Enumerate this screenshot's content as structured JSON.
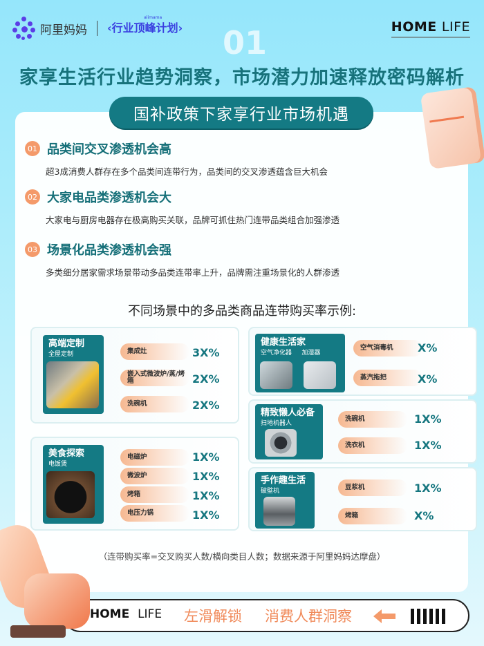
{
  "header": {
    "brand": "阿里妈妈",
    "plan": "‹行业顶峰计划›",
    "plan_small": "alimama",
    "homelife_bold": "HOME",
    "homelife_light": "LIFE",
    "section_number": "01"
  },
  "title": "家享生活行业趋势洞察，市场潜力加速释放密码解析",
  "pill": "国补政策下家享行业市场机遇",
  "sections": [
    {
      "num": "01",
      "heading": "品类间交叉渗透机会高",
      "desc": "超3成消费人群存在多个品类间连带行为，品类间的交叉渗透蕴含巨大机会"
    },
    {
      "num": "02",
      "heading": "大家电品类渗透机会大",
      "desc": "大家电与厨房电器存在极高购买关联，品牌可抓住热门连带品类组合加强渗透"
    },
    {
      "num": "03",
      "heading": "场景化品类渗透机会强",
      "desc": "多类细分居家需求场景带动多品类连带率上升，品牌需注重场景化的人群渗透"
    }
  ],
  "subhead": "不同场景中的多品类商品连带购买率示例:",
  "scenes": [
    {
      "title": "高端定制",
      "sub": "全屋定制",
      "rows": [
        {
          "item": "集成灶",
          "rate": "3X%"
        },
        {
          "item": "嵌入式微波炉/蒸/烤箱",
          "rate": "2X%"
        },
        {
          "item": "洗碗机",
          "rate": "2X%"
        }
      ]
    },
    {
      "title": "美食探索",
      "sub": "电饭煲",
      "rows": [
        {
          "item": "电磁炉",
          "rate": "1X%"
        },
        {
          "item": "微波炉",
          "rate": "1X%"
        },
        {
          "item": "烤箱",
          "rate": "1X%"
        },
        {
          "item": "电压力锅",
          "rate": "1X%"
        }
      ]
    },
    {
      "title": "健康生活家",
      "sub": "空气净化器",
      "sub2": "加湿器",
      "rows": [
        {
          "item": "空气消毒机",
          "rate": "X%"
        },
        {
          "item": "蒸汽拖把",
          "rate": "X%"
        }
      ]
    },
    {
      "title": "精致懒人必备",
      "sub": "扫地机器人",
      "rows": [
        {
          "item": "洗碗机",
          "rate": "1X%"
        },
        {
          "item": "洗衣机",
          "rate": "1X%"
        }
      ]
    },
    {
      "title": "手作趣生活",
      "sub": "破壁机",
      "rows": [
        {
          "item": "豆浆机",
          "rate": "1X%"
        },
        {
          "item": "烤箱",
          "rate": "X%"
        }
      ]
    }
  ],
  "note": "（连带购买率=交叉购买人数/横向类目人数；数据来源于阿里妈妈达摩盘）",
  "footer": {
    "home_bold": "HOME",
    "home_light": "LIFE",
    "swipe": "左滑解锁",
    "next": "消费人群洞察"
  },
  "colors": {
    "teal": "#147a84",
    "orange": "#f49a6a",
    "background": "#95e6fb"
  }
}
